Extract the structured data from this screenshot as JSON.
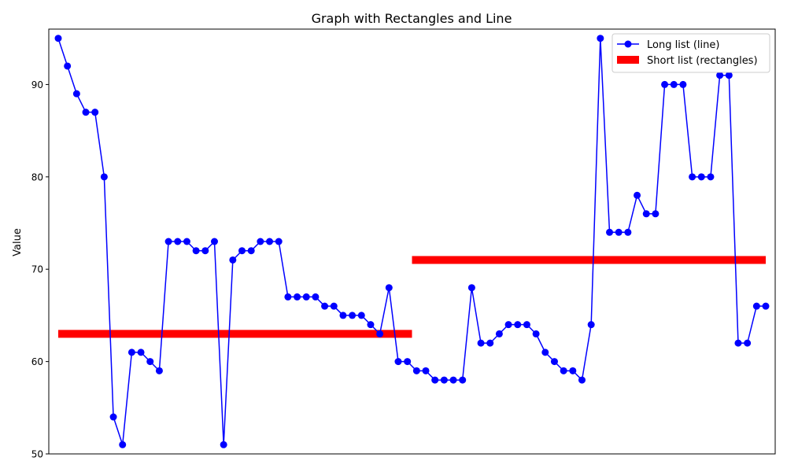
{
  "chart_data": {
    "type": "line",
    "title": "Graph with Rectangles and Line",
    "xlabel": "",
    "ylabel": "Value",
    "ylim": [
      50,
      96
    ],
    "yticks": [
      50,
      60,
      70,
      80,
      90
    ],
    "x_ticks_visible": false,
    "grid": false,
    "legend_position": "top-right",
    "series": [
      {
        "name": "Long list (line)",
        "kind": "line",
        "color": "#0000ff",
        "values": [
          95,
          92,
          89,
          87,
          87,
          80,
          54,
          51,
          61,
          61,
          60,
          59,
          73,
          73,
          73,
          72,
          72,
          73,
          51,
          71,
          72,
          72,
          73,
          73,
          73,
          67,
          67,
          67,
          67,
          66,
          66,
          65,
          65,
          65,
          64,
          63,
          68,
          60,
          60,
          59,
          59,
          58,
          58,
          58,
          58,
          68,
          62,
          62,
          63,
          64,
          64,
          64,
          63,
          61,
          60,
          59,
          59,
          58,
          64,
          95,
          74,
          74,
          74,
          78,
          76,
          76,
          90,
          90,
          90,
          80,
          80,
          80,
          91,
          91,
          62,
          62,
          66,
          66
        ]
      },
      {
        "name": "Short list (rectangles)",
        "kind": "rectangles",
        "color": "#ff0000",
        "values": [
          63,
          71
        ]
      }
    ]
  }
}
